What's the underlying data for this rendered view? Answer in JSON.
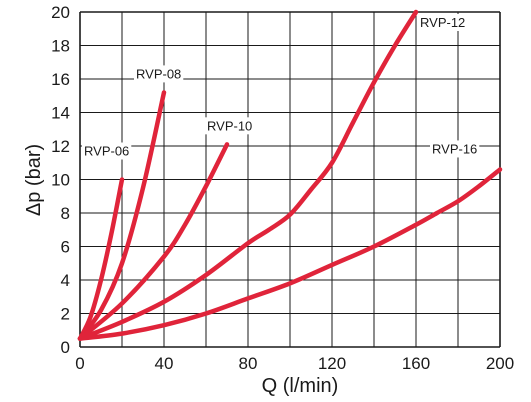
{
  "chart_data": {
    "type": "line",
    "xlabel": "Q (l/min)",
    "ylabel": "Δp (bar)",
    "xlim": [
      0,
      200
    ],
    "ylim": [
      0,
      20
    ],
    "x_ticks": [
      "0",
      "40",
      "80",
      "120",
      "160",
      "200"
    ],
    "y_ticks": [
      "0",
      "2",
      "4",
      "6",
      "8",
      "10",
      "12",
      "14",
      "16",
      "18",
      "20"
    ],
    "grid": true,
    "line_color": "#e0243a",
    "series": [
      {
        "name": "RVP-06",
        "x": [
          0,
          5,
          10,
          15,
          20
        ],
        "y": [
          0.5,
          1.8,
          4.0,
          6.8,
          10.0
        ]
      },
      {
        "name": "RVP-08",
        "x": [
          0,
          10,
          20,
          30,
          40
        ],
        "y": [
          0.5,
          2.2,
          5.0,
          9.5,
          15.2
        ]
      },
      {
        "name": "RVP-10",
        "x": [
          0,
          20,
          40,
          50,
          60,
          70
        ],
        "y": [
          0.5,
          2.6,
          5.4,
          7.3,
          9.6,
          12.1
        ]
      },
      {
        "name": "RVP-12",
        "x": [
          0,
          20,
          40,
          60,
          80,
          90,
          100,
          110,
          120,
          130,
          140,
          150,
          160
        ],
        "y": [
          0.5,
          1.5,
          2.7,
          4.3,
          6.2,
          7.0,
          7.9,
          9.4,
          11.0,
          13.4,
          15.8,
          18.0,
          20.0
        ]
      },
      {
        "name": "RVP-16",
        "x": [
          0,
          20,
          40,
          60,
          80,
          100,
          120,
          140,
          160,
          170,
          180,
          190,
          200
        ],
        "y": [
          0.5,
          0.8,
          1.3,
          2.0,
          2.9,
          3.8,
          4.9,
          6.0,
          7.3,
          8.0,
          8.7,
          9.6,
          10.6
        ]
      }
    ]
  }
}
